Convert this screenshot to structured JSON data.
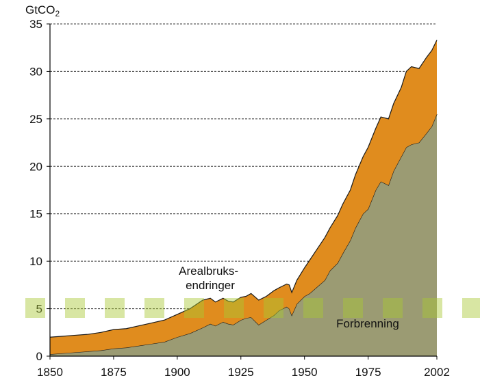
{
  "chart_data": {
    "type": "area",
    "stacked": true,
    "title": "",
    "xlabel": "",
    "ylabel": "GtCO",
    "ylabel_subscript": "2",
    "xlim": [
      1850,
      2002
    ],
    "ylim": [
      0,
      35
    ],
    "grid": "horizontal dashed",
    "x_ticks": [
      1850,
      1875,
      1900,
      1925,
      1950,
      1975,
      2002
    ],
    "y_ticks": [
      0,
      5,
      10,
      15,
      20,
      25,
      30,
      35
    ],
    "x": [
      1850,
      1855,
      1860,
      1865,
      1870,
      1875,
      1880,
      1885,
      1890,
      1895,
      1900,
      1905,
      1910,
      1913,
      1915,
      1918,
      1920,
      1922,
      1925,
      1927,
      1929,
      1932,
      1935,
      1938,
      1940,
      1943,
      1944,
      1945,
      1947,
      1950,
      1952,
      1955,
      1958,
      1960,
      1963,
      1965,
      1968,
      1970,
      1973,
      1975,
      1978,
      1980,
      1983,
      1985,
      1988,
      1990,
      1992,
      1995,
      1998,
      2000,
      2002
    ],
    "series": [
      {
        "name": "Forbrenning",
        "color": "#9b9b73",
        "values": [
          0.2,
          0.3,
          0.4,
          0.5,
          0.6,
          0.8,
          0.9,
          1.1,
          1.3,
          1.5,
          2.0,
          2.4,
          3.0,
          3.4,
          3.2,
          3.6,
          3.4,
          3.3,
          3.8,
          4.0,
          4.1,
          3.3,
          3.8,
          4.3,
          4.8,
          5.2,
          5.0,
          4.3,
          5.5,
          6.3,
          6.6,
          7.3,
          8.0,
          9.0,
          9.8,
          10.8,
          12.2,
          13.5,
          15.0,
          15.5,
          17.5,
          18.4,
          18.0,
          19.5,
          21.0,
          22.0,
          22.3,
          22.5,
          23.5,
          24.2,
          25.5
        ]
      },
      {
        "name": "Arealbruksendringer",
        "color": "#e08c1e",
        "values": [
          1.8,
          1.8,
          1.8,
          1.8,
          1.9,
          2.0,
          2.0,
          2.1,
          2.2,
          2.3,
          2.4,
          2.6,
          2.9,
          2.7,
          2.5,
          2.5,
          2.4,
          2.4,
          2.4,
          2.3,
          2.5,
          2.6,
          2.5,
          2.6,
          2.4,
          2.4,
          2.5,
          2.4,
          2.5,
          3.0,
          3.5,
          4.0,
          4.5,
          4.5,
          5.0,
          5.2,
          5.3,
          5.6,
          6.0,
          6.5,
          6.5,
          6.8,
          7.0,
          7.1,
          7.3,
          8.0,
          8.2,
          7.8,
          8.0,
          8.0,
          7.8
        ]
      }
    ],
    "annotations": [
      {
        "series": "Arealbruksendringer",
        "text_lines": [
          "Arealbruks-",
          "endringer"
        ]
      },
      {
        "series": "Forbrenning",
        "text_lines": [
          "Forbrenning"
        ]
      }
    ]
  },
  "colors": {
    "top_outline": "#1a1a1a",
    "grid": "#333333",
    "axis": "#000000",
    "watermark": "#a8c832"
  }
}
